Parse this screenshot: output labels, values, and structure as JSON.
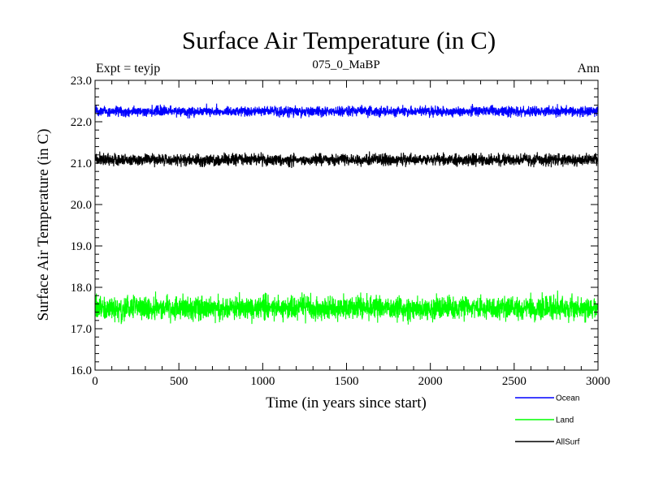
{
  "chart_data": {
    "type": "line",
    "title": "Surface Air Temperature (in C)",
    "subtitle": "075_0_MaBP",
    "top_left_label": "Expt = teyjp",
    "top_right_label": "Ann",
    "xlabel": "Time (in years since start)",
    "ylabel": "Surface Air Temperature (in C)",
    "xlim": [
      0,
      3000
    ],
    "ylim": [
      16.0,
      23.0
    ],
    "x_ticks": [
      0,
      500,
      1000,
      1500,
      2000,
      2500,
      3000
    ],
    "x_tick_labels": [
      "0",
      "500",
      "1000",
      "1500",
      "2000",
      "2500",
      "3000"
    ],
    "y_ticks": [
      16.0,
      17.0,
      18.0,
      19.0,
      20.0,
      21.0,
      22.0,
      23.0
    ],
    "y_tick_labels": [
      "16.0",
      "17.0",
      "18.0",
      "19.0",
      "20.0",
      "21.0",
      "22.0",
      "23.0"
    ],
    "grid": false,
    "legend_position": "bottom-right, below plot",
    "series": [
      {
        "name": "Ocean",
        "color": "#0000ff",
        "mean": 22.25,
        "min": 22.05,
        "max": 22.45
      },
      {
        "name": "Land",
        "color": "#00ff00",
        "mean": 17.5,
        "min": 17.0,
        "max": 17.95
      },
      {
        "name": "AllSurf",
        "color": "#000000",
        "mean": 21.08,
        "min": 20.85,
        "max": 21.35
      }
    ]
  }
}
